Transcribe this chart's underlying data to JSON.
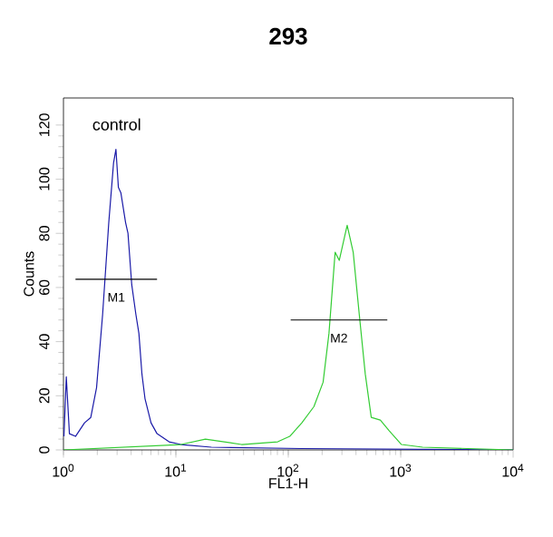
{
  "chart_data": {
    "type": "line",
    "title": "293",
    "xlabel": "FL1-H",
    "ylabel": "Counts",
    "log": "x",
    "xlim": [
      1,
      10000
    ],
    "ylim": [
      0,
      130
    ],
    "xticks": [
      {
        "value": 1,
        "label": "10$^{0}$"
      },
      {
        "value": 10,
        "label": "10$^{1}$"
      },
      {
        "value": 100,
        "label": "10$^{2}$"
      },
      {
        "value": 1000,
        "label": "10$^{3}$"
      },
      {
        "value": 10000,
        "label": "10$^{4}$"
      }
    ],
    "yticks": [
      0,
      20,
      40,
      60,
      80,
      100,
      120
    ],
    "grid": false,
    "legend": false,
    "marker": "none",
    "line_style": "solid",
    "series": [
      {
        "name": "control",
        "color": "#1a1aa8",
        "x": [
          1.01,
          1.06,
          1.13,
          1.28,
          1.54,
          1.75,
          1.97,
          2.23,
          2.53,
          2.79,
          2.93,
          3.08,
          3.24,
          3.57,
          3.75,
          4.05,
          4.41,
          4.69,
          4.99,
          5.31,
          6.01,
          6.8,
          8.7,
          11.1,
          20.7,
          132,
          10000
        ],
        "values": [
          5,
          27,
          6,
          5,
          10,
          12,
          23,
          50,
          84,
          106,
          111,
          97,
          95,
          84,
          80,
          61,
          50,
          43,
          28,
          19,
          10,
          6,
          3,
          2,
          1,
          0.5,
          0
        ]
      },
      {
        "color": "#33cc33",
        "x": [
          1,
          11.1,
          18.3,
          38.4,
          80.5,
          103,
          132,
          169,
          204,
          230,
          261,
          284,
          334,
          378,
          428,
          484,
          547,
          659,
          793,
          1016,
          1567,
          10000
        ],
        "values": [
          0,
          2,
          4,
          2,
          3,
          5,
          10,
          16,
          25,
          43,
          73,
          70,
          83,
          73,
          50,
          28,
          12,
          11,
          7,
          2,
          1,
          0
        ]
      },
      {
        "color": "#000000",
        "x": [
          1.28,
          6.8
        ],
        "values": [
          63,
          63
        ]
      },
      {
        "color": "#000000",
        "x": [
          105,
          760
        ],
        "values": [
          48,
          48
        ]
      }
    ],
    "annotations": [
      {
        "text": "M1",
        "x": 2.95,
        "y": 63
      },
      {
        "text": "M2",
        "x": 282,
        "y": 48
      }
    ]
  }
}
